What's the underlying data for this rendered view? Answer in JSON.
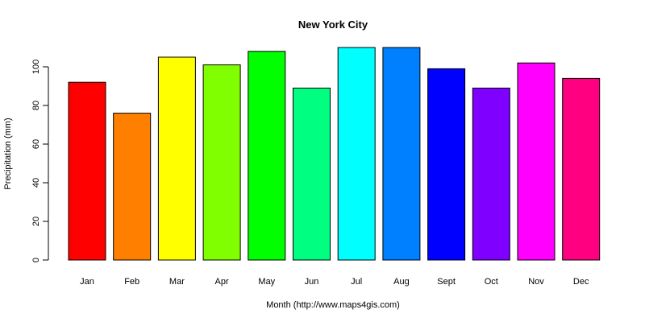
{
  "chart_data": {
    "type": "bar",
    "title": "New York City",
    "xlabel": "Month (http://www.maps4gis.com)",
    "ylabel": "Precipitation (mm)",
    "categories": [
      "Jan",
      "Feb",
      "Mar",
      "Apr",
      "May",
      "Jun",
      "Jul",
      "Aug",
      "Sept",
      "Oct",
      "Nov",
      "Dec"
    ],
    "values": [
      92,
      76,
      105,
      101,
      108,
      89,
      110,
      110,
      99,
      89,
      102,
      94
    ],
    "colors": [
      "#ff0000",
      "#ff8000",
      "#ffff00",
      "#80ff00",
      "#00ff00",
      "#00ff80",
      "#00ffff",
      "#0080ff",
      "#0000ff",
      "#8000ff",
      "#ff00ff",
      "#ff0080"
    ],
    "yticks": [
      0,
      20,
      40,
      60,
      80,
      100
    ],
    "ylim": [
      0,
      110
    ],
    "grid": false,
    "legend": "none"
  }
}
